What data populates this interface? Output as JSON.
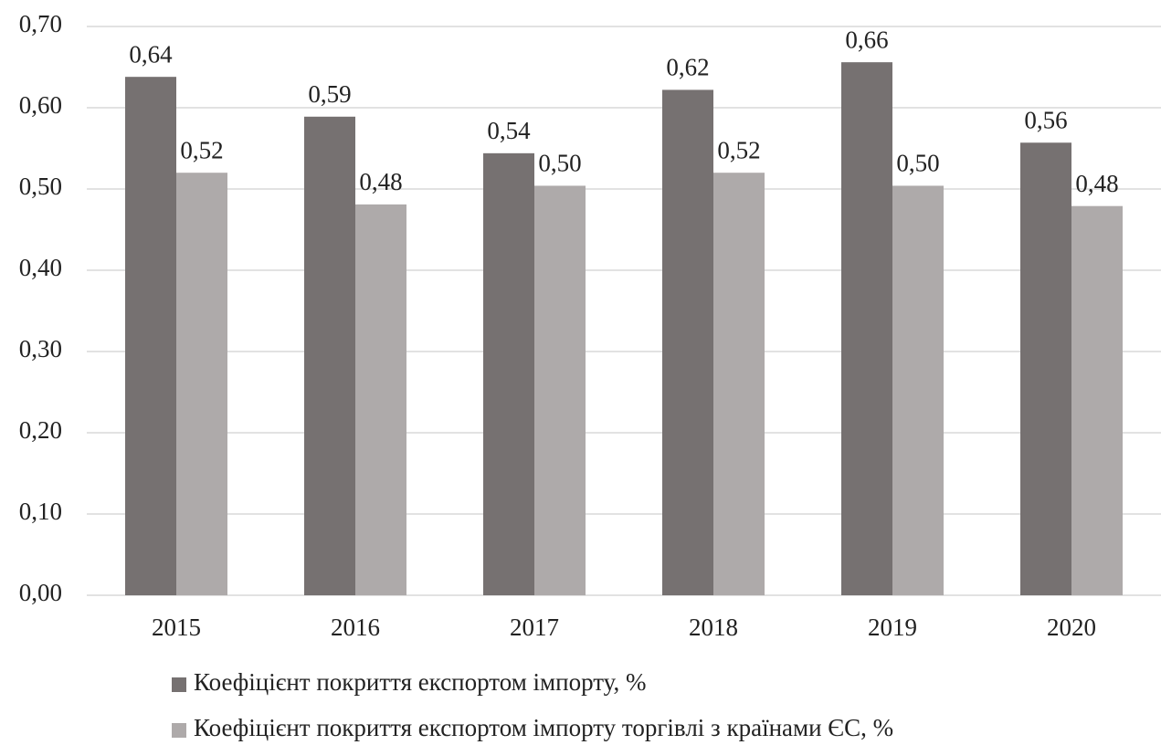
{
  "chart_data": {
    "type": "bar",
    "categories": [
      "2015",
      "2016",
      "2017",
      "2018",
      "2019",
      "2020"
    ],
    "series": [
      {
        "name": "Коефіцієнт покриття експортом імпорту, %",
        "color": "#767171",
        "values": [
          0.638,
          0.589,
          0.544,
          0.622,
          0.656,
          0.557
        ],
        "value_labels": [
          "0,64",
          "0,59",
          "0,54",
          "0,62",
          "0,66",
          "0,56"
        ]
      },
      {
        "name": "Коефіцієнт покриття експортом імпорту торгівлі з країнами ЄС, %",
        "color": "#aeaaaa",
        "values": [
          0.52,
          0.481,
          0.504,
          0.52,
          0.504,
          0.479
        ],
        "value_labels": [
          "0,52",
          "0,48",
          "0,50",
          "0,52",
          "0,50",
          "0,48"
        ]
      }
    ],
    "ylim": [
      0,
      0.7
    ],
    "yticks": [
      {
        "value": 0,
        "label": "0,00"
      },
      {
        "value": 0.1,
        "label": "0,10"
      },
      {
        "value": 0.2,
        "label": "0,20"
      },
      {
        "value": 0.3,
        "label": "0,30"
      },
      {
        "value": 0.4,
        "label": "0,40"
      },
      {
        "value": 0.5,
        "label": "0,50"
      },
      {
        "value": 0.6,
        "label": "0,60"
      },
      {
        "value": 0.7,
        "label": "0,70"
      }
    ],
    "grid": true,
    "legend": "bottom"
  }
}
